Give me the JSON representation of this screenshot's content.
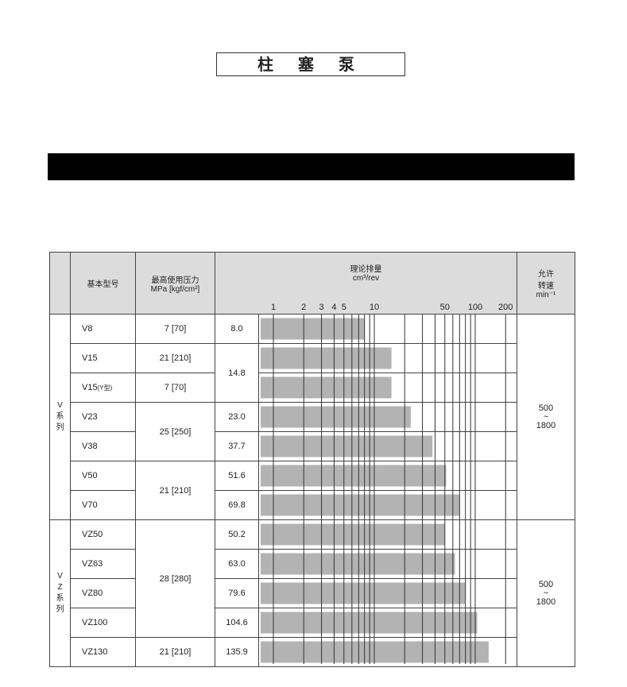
{
  "title": "柱 塞 泵",
  "header": {
    "model": "基本型号",
    "pressure_line1": "最高使用压力",
    "pressure_unit": "MPa [kgf/cm²]",
    "displacement": "理论排量",
    "displacement_unit": "cm³/rev",
    "speed_line1": "允许",
    "speed_line2": "转速",
    "speed_unit": "min⁻¹"
  },
  "chart_data": {
    "type": "bar",
    "orientation": "horizontal",
    "xscale": "log",
    "xlim": [
      0.8,
      200
    ],
    "xticks": [
      "1",
      "2",
      "3",
      "4",
      "5",
      "10",
      "50",
      "100",
      "200"
    ],
    "categories": [
      "V8",
      "V15",
      "V15(Y型)",
      "V23",
      "V38",
      "V50",
      "V70",
      "VZ50",
      "VZ63",
      "VZ80",
      "VZ100",
      "VZ130"
    ],
    "values": [
      8.0,
      14.8,
      14.8,
      23.0,
      37.7,
      51.6,
      69.8,
      50.2,
      63.0,
      79.6,
      104.6,
      135.9
    ],
    "bar_color": "#b3b3b3"
  },
  "groups": [
    {
      "label": "V\n系\n列",
      "speed": "500\n~\n1800"
    },
    {
      "label": "V\nZ\n系\n列",
      "speed": "500\n~\n1800"
    }
  ],
  "rows": [
    {
      "model": "V8",
      "pressure": "7 [70]",
      "disp": "8.0"
    },
    {
      "model": "V15",
      "pressure": "21 [210]",
      "disp": "14.8"
    },
    {
      "model": "V15",
      "model_suffix": "(Y型)",
      "pressure": "7 [70]"
    },
    {
      "model": "V23",
      "pressure": "25 [250]",
      "disp": "23.0"
    },
    {
      "model": "V38",
      "disp": "37.7"
    },
    {
      "model": "V50",
      "pressure": "21 [210]",
      "disp": "51.6"
    },
    {
      "model": "V70",
      "disp": "69.8"
    },
    {
      "model": "VZ50",
      "pressure": "28 [280]",
      "disp": "50.2"
    },
    {
      "model": "VZ63",
      "disp": "63.0"
    },
    {
      "model": "VZ80",
      "disp": "79.6"
    },
    {
      "model": "VZ100",
      "disp": "104.6"
    },
    {
      "model": "VZ130",
      "pressure": "21 [210]",
      "disp": "135.9"
    }
  ]
}
